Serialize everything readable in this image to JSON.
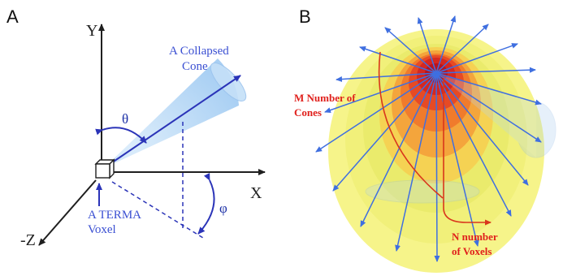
{
  "panels": {
    "a": {
      "letter": "A",
      "axes": {
        "y": "Y",
        "x": "X",
        "z": "-Z"
      },
      "angles": {
        "theta": "θ",
        "phi": "φ"
      },
      "cone_label": {
        "line1": "A Collapsed",
        "line2": "Cone"
      },
      "voxel_label": {
        "line1": "A TERMA",
        "line2": "Voxel"
      }
    },
    "b": {
      "letter": "B",
      "cones_label": {
        "line1": "M Number of",
        "line2": "Cones"
      },
      "voxels_label": {
        "line1": "N number",
        "line2": "of Voxels"
      }
    }
  },
  "colors": {
    "axis": "#1f1f1f",
    "arrow_blue": "#2b34b8",
    "cone_fill": "#aed3f5",
    "annotation_blue": "#3a4fd2",
    "annotation_red": "#e0201c",
    "dose_outer": "#f6f48a",
    "dose_core": "#c9151d"
  }
}
